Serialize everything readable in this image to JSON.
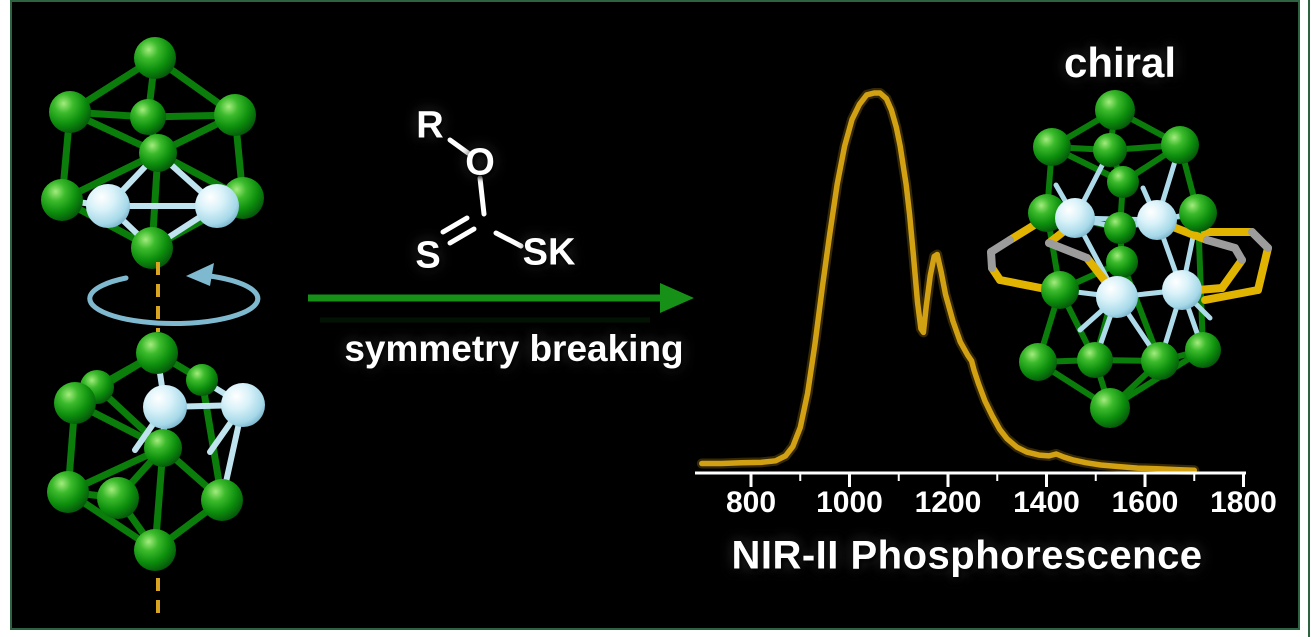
{
  "figure": {
    "chiral_label": "chiral",
    "process_label": "symmetry breaking",
    "spectrum_label": "NIR-II Phosphorescence",
    "reagent": {
      "r_group": "R",
      "oxygen": "O",
      "sulfur": "S",
      "sulfur_k": "SK"
    }
  },
  "chart_data": {
    "type": "line",
    "title": "NIR-II Phosphorescence",
    "xlabel": "",
    "ylabel": "",
    "xlim": [
      700,
      1800
    ],
    "ylim": [
      0,
      1.05
    ],
    "x_ticks": [
      800,
      1000,
      1200,
      1400,
      1600,
      1800
    ],
    "x_minor_ticks": [
      900,
      1100,
      1300,
      1500,
      1700
    ],
    "grid": false,
    "legend": false,
    "line_color": "#d2a013",
    "series": [
      {
        "name": "NIR-II phosphorescence emission",
        "points": [
          [
            700,
            0.025
          ],
          [
            740,
            0.025
          ],
          [
            780,
            0.027
          ],
          [
            820,
            0.028
          ],
          [
            850,
            0.032
          ],
          [
            870,
            0.045
          ],
          [
            885,
            0.07
          ],
          [
            900,
            0.12
          ],
          [
            915,
            0.21
          ],
          [
            930,
            0.34
          ],
          [
            945,
            0.49
          ],
          [
            960,
            0.63
          ],
          [
            975,
            0.76
          ],
          [
            990,
            0.86
          ],
          [
            1005,
            0.93
          ],
          [
            1020,
            0.97
          ],
          [
            1035,
            0.995
          ],
          [
            1050,
            1.0
          ],
          [
            1062,
            1.0
          ],
          [
            1075,
            0.985
          ],
          [
            1085,
            0.955
          ],
          [
            1095,
            0.91
          ],
          [
            1103,
            0.86
          ],
          [
            1110,
            0.8
          ],
          [
            1115,
            0.76
          ],
          [
            1122,
            0.68
          ],
          [
            1130,
            0.57
          ],
          [
            1138,
            0.45
          ],
          [
            1145,
            0.38
          ],
          [
            1150,
            0.37
          ],
          [
            1156,
            0.44
          ],
          [
            1164,
            0.52
          ],
          [
            1172,
            0.57
          ],
          [
            1178,
            0.575
          ],
          [
            1186,
            0.53
          ],
          [
            1195,
            0.47
          ],
          [
            1210,
            0.4
          ],
          [
            1225,
            0.345
          ],
          [
            1240,
            0.31
          ],
          [
            1248,
            0.295
          ],
          [
            1253,
            0.27
          ],
          [
            1262,
            0.235
          ],
          [
            1275,
            0.19
          ],
          [
            1290,
            0.15
          ],
          [
            1305,
            0.115
          ],
          [
            1320,
            0.09
          ],
          [
            1340,
            0.068
          ],
          [
            1360,
            0.055
          ],
          [
            1385,
            0.047
          ],
          [
            1405,
            0.045
          ],
          [
            1420,
            0.05
          ],
          [
            1435,
            0.042
          ],
          [
            1455,
            0.034
          ],
          [
            1480,
            0.027
          ],
          [
            1510,
            0.021
          ],
          [
            1545,
            0.017
          ],
          [
            1585,
            0.013
          ],
          [
            1625,
            0.011
          ],
          [
            1665,
            0.009
          ],
          [
            1700,
            0.007
          ]
        ]
      }
    ]
  },
  "colors": {
    "background": "#000000",
    "frame_green": "#2e6342",
    "arrow_green": "#169016",
    "curve_gold": "#d2a013",
    "axis_white": "#ffffff",
    "sphere_green": "#0d8f0d",
    "sphere_blue": "#bfe6f2",
    "ligand_yellow": "#e0b400",
    "ligand_gray": "#9c9c9c",
    "rotation_cyan": "#7fb9cf",
    "rotation_axis_orange": "#d9a520"
  }
}
